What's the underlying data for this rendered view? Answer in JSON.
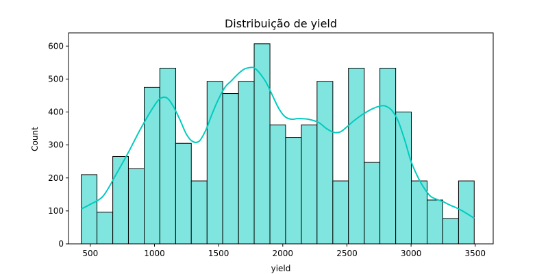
{
  "chart_data": {
    "type": "histogram",
    "title": "Distribuição de yield",
    "xlabel": "yield",
    "ylabel": "Count",
    "xlim": [
      330,
      3640
    ],
    "ylim": [
      0,
      640
    ],
    "x_ticks": [
      500,
      1000,
      1500,
      2000,
      2500,
      3000,
      3500
    ],
    "y_ticks": [
      0,
      100,
      200,
      300,
      400,
      500,
      600
    ],
    "bins": [
      {
        "x0": 430,
        "x1": 552,
        "count": 210
      },
      {
        "x0": 552,
        "x1": 675,
        "count": 96
      },
      {
        "x0": 675,
        "x1": 797,
        "count": 265
      },
      {
        "x0": 797,
        "x1": 920,
        "count": 228
      },
      {
        "x0": 920,
        "x1": 1042,
        "count": 475
      },
      {
        "x0": 1042,
        "x1": 1165,
        "count": 533
      },
      {
        "x0": 1165,
        "x1": 1287,
        "count": 305
      },
      {
        "x0": 1287,
        "x1": 1410,
        "count": 191
      },
      {
        "x0": 1410,
        "x1": 1532,
        "count": 493
      },
      {
        "x0": 1532,
        "x1": 1655,
        "count": 456
      },
      {
        "x0": 1655,
        "x1": 1777,
        "count": 493
      },
      {
        "x0": 1777,
        "x1": 1900,
        "count": 607
      },
      {
        "x0": 1900,
        "x1": 2022,
        "count": 361
      },
      {
        "x0": 2022,
        "x1": 2145,
        "count": 323
      },
      {
        "x0": 2145,
        "x1": 2267,
        "count": 361
      },
      {
        "x0": 2267,
        "x1": 2390,
        "count": 493
      },
      {
        "x0": 2390,
        "x1": 2512,
        "count": 191
      },
      {
        "x0": 2512,
        "x1": 2635,
        "count": 533
      },
      {
        "x0": 2635,
        "x1": 2757,
        "count": 247
      },
      {
        "x0": 2757,
        "x1": 2880,
        "count": 533
      },
      {
        "x0": 2880,
        "x1": 3002,
        "count": 400
      },
      {
        "x0": 3002,
        "x1": 3125,
        "count": 191
      },
      {
        "x0": 3125,
        "x1": 3247,
        "count": 133
      },
      {
        "x0": 3247,
        "x1": 3370,
        "count": 77
      },
      {
        "x0": 3370,
        "x1": 3492,
        "count": 191
      }
    ],
    "kde": {
      "x": [
        430,
        500,
        600,
        700,
        800,
        900,
        1000,
        1050,
        1100,
        1150,
        1200,
        1250,
        1300,
        1350,
        1400,
        1450,
        1500,
        1550,
        1600,
        1650,
        1700,
        1750,
        1780,
        1820,
        1870,
        1920,
        1970,
        2020,
        2070,
        2120,
        2200,
        2280,
        2340,
        2400,
        2450,
        2500,
        2550,
        2620,
        2700,
        2760,
        2800,
        2850,
        2900,
        2950,
        3000,
        3050,
        3100,
        3150,
        3200,
        3250,
        3300,
        3350,
        3400,
        3450,
        3492
      ],
      "y": [
        106,
        120,
        145,
        210,
        280,
        355,
        420,
        442,
        442,
        415,
        375,
        332,
        310,
        312,
        345,
        395,
        440,
        475,
        495,
        515,
        530,
        535,
        533,
        518,
        490,
        450,
        410,
        385,
        378,
        380,
        378,
        368,
        350,
        338,
        340,
        355,
        372,
        392,
        410,
        418,
        418,
        405,
        372,
        315,
        250,
        205,
        170,
        145,
        135,
        128,
        118,
        110,
        100,
        88,
        78
      ]
    },
    "colors": {
      "bar_fill": "#7fe5de",
      "bar_edge": "#000000",
      "kde_line": "#00cbbf"
    }
  }
}
